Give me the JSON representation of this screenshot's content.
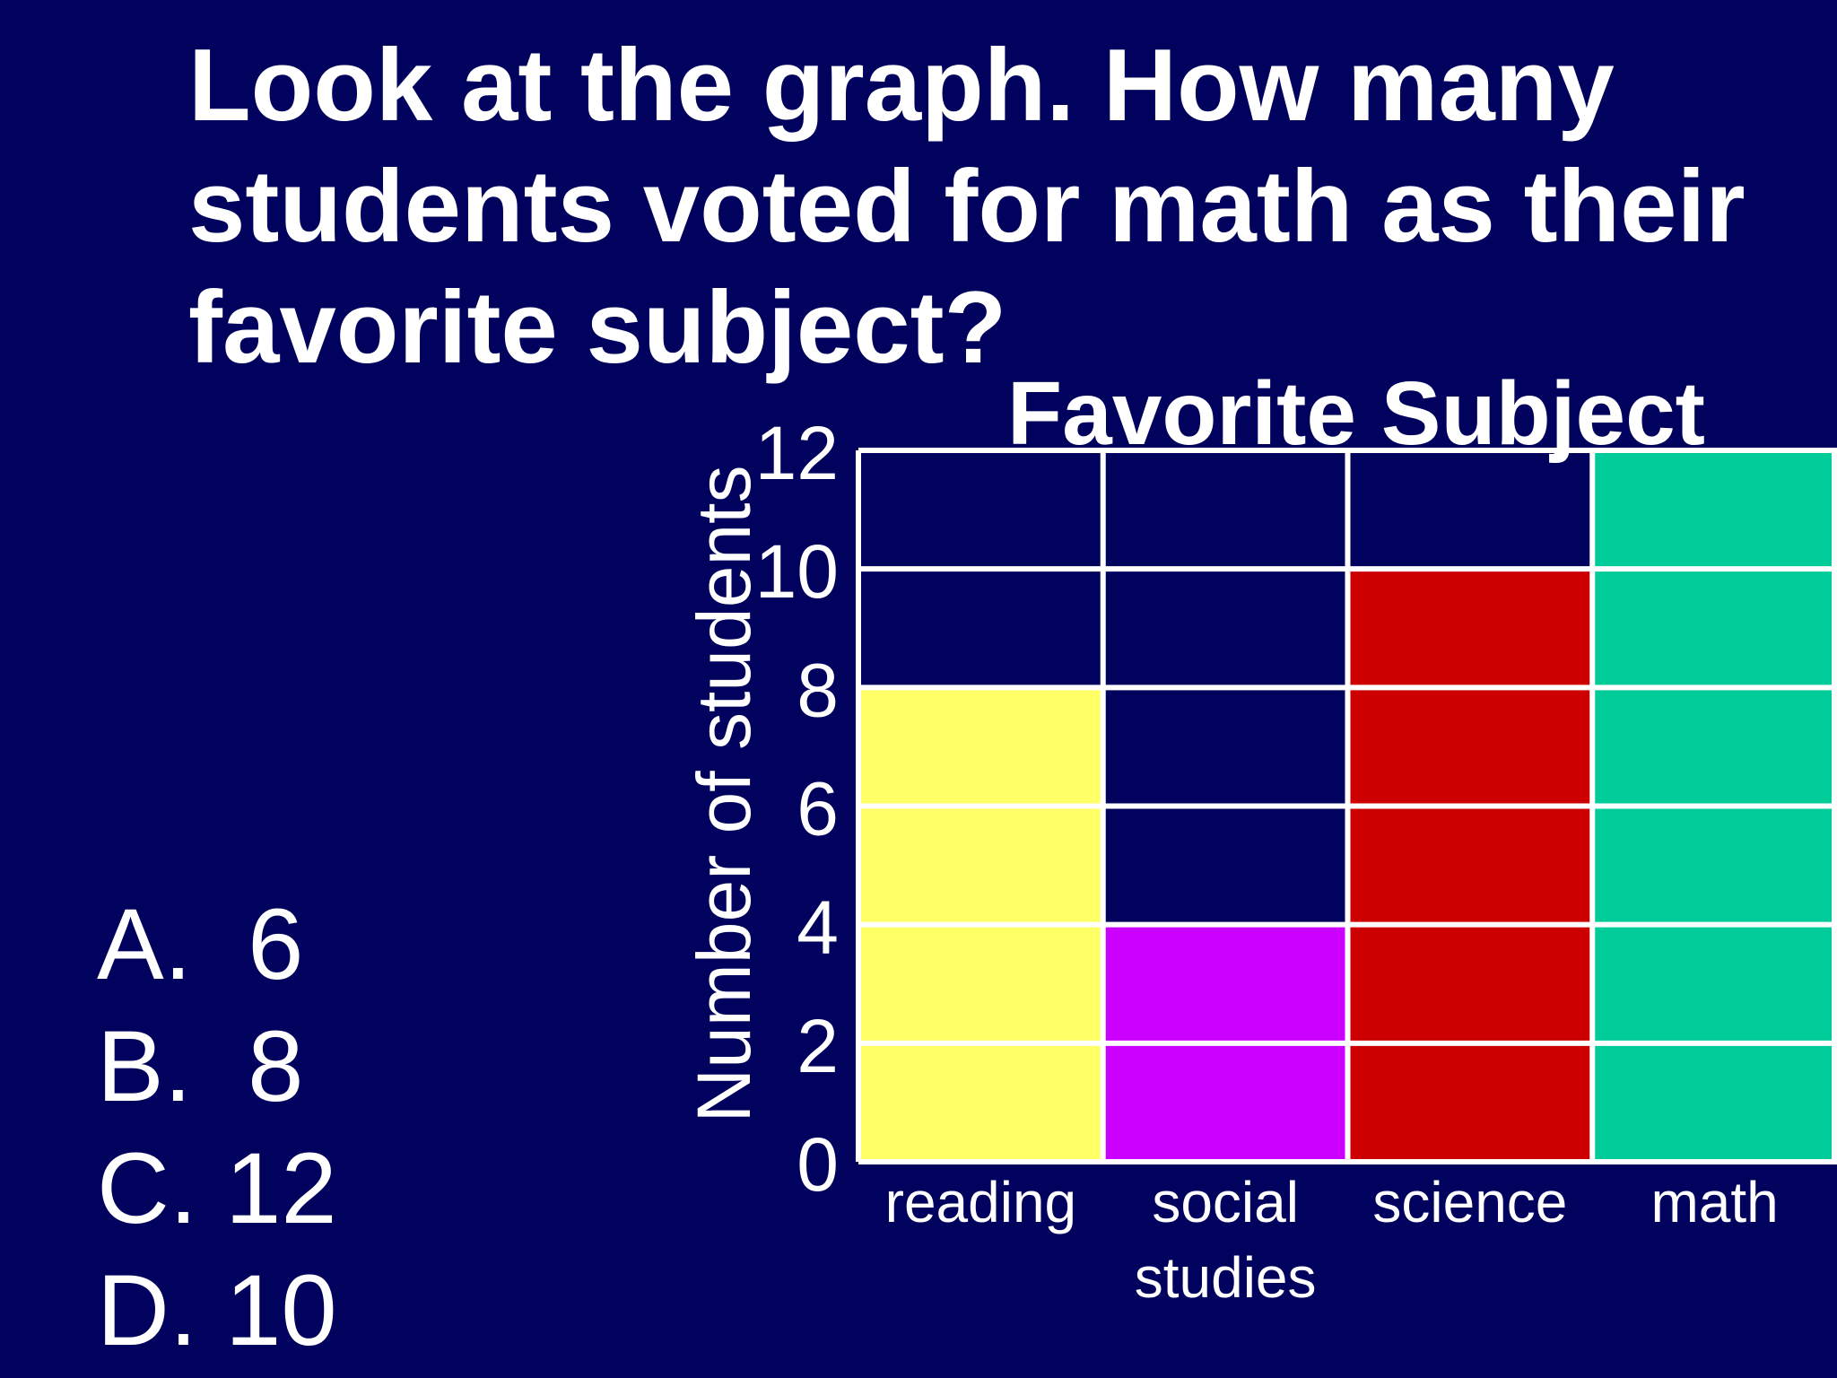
{
  "question": {
    "lines": [
      "Look at the graph.  How many",
      "students voted for math as their",
      "favorite subject?"
    ]
  },
  "answers": [
    {
      "letter": "A.",
      "value": "6"
    },
    {
      "letter": "B.",
      "value": "8"
    },
    {
      "letter": "C.",
      "value": "12"
    },
    {
      "letter": "D.",
      "value": "10"
    }
  ],
  "chart_data": {
    "type": "bar",
    "title": "Favorite Subject",
    "xlabel": "",
    "ylabel": "Number of students",
    "categories": [
      [
        "reading"
      ],
      [
        "social",
        "studies"
      ],
      [
        "science"
      ],
      [
        "math"
      ]
    ],
    "values": [
      8,
      4,
      10,
      12
    ],
    "colors": [
      "#ffff66",
      "#cc00ff",
      "#cc0000",
      "#00cc99"
    ],
    "ylim": [
      0,
      12
    ],
    "yticks": [
      0,
      2,
      4,
      6,
      8,
      10,
      12
    ],
    "grid": true,
    "background_color": "#01015e",
    "gridline_color": "#ffffff"
  }
}
